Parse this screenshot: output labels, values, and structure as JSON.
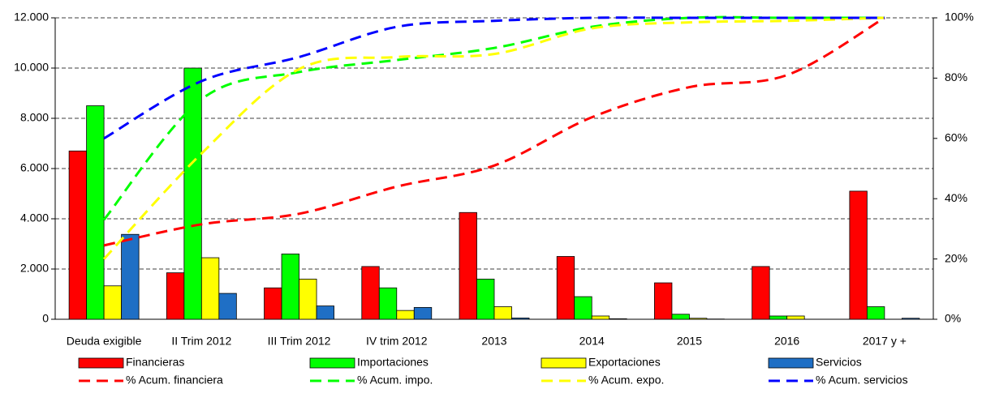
{
  "chart_data": {
    "type": "bar",
    "categories": [
      "Deuda exigible",
      "II Trim 2012",
      "III Trim 2012",
      "IV trim 2012",
      "2013",
      "2014",
      "2015",
      "2016",
      "2017 y +"
    ],
    "ylim": [
      0,
      12000
    ],
    "yticks": [
      0,
      {
        "value": 2000,
        "label": "2.000"
      },
      {
        "value": 4000,
        "label": "4.000"
      },
      {
        "value": 6000,
        "label": "6.000"
      },
      {
        "value": 8000,
        "label": "8.000"
      },
      {
        "value": 10000,
        "label": "10.000"
      },
      {
        "value": 12000,
        "label": "12.000"
      }
    ],
    "y2lim": [
      0,
      100
    ],
    "y2ticks": [
      {
        "value": 0,
        "label": "0%"
      },
      {
        "value": 20,
        "label": "20%"
      },
      {
        "value": 40,
        "label": "40%"
      },
      {
        "value": 60,
        "label": "60%"
      },
      {
        "value": 80,
        "label": "80%"
      },
      {
        "value": 100,
        "label": "100%"
      }
    ],
    "grid": true,
    "series": [
      {
        "name": "Financieras",
        "type": "bar",
        "color": "#ff0000",
        "values": [
          6700,
          1850,
          1250,
          2100,
          4250,
          2500,
          1450,
          2100,
          5100
        ]
      },
      {
        "name": "Importaciones",
        "type": "bar",
        "color": "#00ff00",
        "values": [
          8500,
          10000,
          2600,
          1250,
          1600,
          900,
          200,
          130,
          500
        ]
      },
      {
        "name": "Exportaciones",
        "type": "bar",
        "color": "#ffff00",
        "values": [
          1330,
          2450,
          1600,
          350,
          500,
          130,
          40,
          130,
          0
        ]
      },
      {
        "name": "Servicios",
        "type": "bar",
        "color": "#1f6fc5",
        "values": [
          3380,
          1030,
          530,
          470,
          50,
          20,
          10,
          0,
          40
        ]
      },
      {
        "name": "% Acum. financiera",
        "type": "line",
        "axis": "y2",
        "color": "#ff0000",
        "values": [
          24.5,
          31.5,
          35,
          44,
          51,
          67,
          77,
          81,
          100
        ]
      },
      {
        "name": "% Acum. impo.",
        "type": "line",
        "axis": "y2",
        "color": "#00ff00",
        "values": [
          33,
          73,
          82,
          86,
          90,
          97,
          100,
          100,
          100
        ]
      },
      {
        "name": "% Acum. expo.",
        "type": "line",
        "axis": "y2",
        "color": "#ffff00",
        "values": [
          20,
          55,
          83,
          87,
          88,
          96.5,
          98.5,
          99,
          100
        ]
      },
      {
        "name": "% Acum. servicios",
        "type": "line",
        "axis": "y2",
        "color": "#0000ff",
        "values": [
          60,
          79,
          87,
          97,
          99,
          100,
          100,
          100,
          100
        ]
      }
    ]
  }
}
